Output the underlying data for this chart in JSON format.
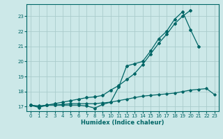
{
  "xlabel": "Humidex (Indice chaleur)",
  "bg_color": "#cce8e8",
  "grid_color": "#aacccc",
  "line_color": "#006666",
  "x_values": [
    0,
    1,
    2,
    3,
    4,
    5,
    6,
    7,
    8,
    9,
    10,
    11,
    12,
    13,
    14,
    15,
    16,
    17,
    18,
    19,
    20,
    21,
    22,
    23
  ],
  "line1_y": [
    17.1,
    17.0,
    17.1,
    17.1,
    17.15,
    17.2,
    17.2,
    17.2,
    17.2,
    17.25,
    17.3,
    17.4,
    17.5,
    17.6,
    17.7,
    17.75,
    17.8,
    17.85,
    17.9,
    18.0,
    18.1,
    18.15,
    18.2,
    17.8
  ],
  "line2_y": [
    17.1,
    16.95,
    17.1,
    17.1,
    17.1,
    17.1,
    17.1,
    17.05,
    16.9,
    17.15,
    17.3,
    18.3,
    19.7,
    19.85,
    20.0,
    20.7,
    21.5,
    22.0,
    22.8,
    23.3,
    22.1,
    21.0,
    null,
    null
  ],
  "line3_y": [
    17.1,
    17.05,
    17.1,
    17.2,
    17.3,
    17.4,
    17.5,
    17.6,
    17.65,
    17.75,
    18.1,
    18.4,
    18.8,
    19.2,
    19.8,
    20.5,
    21.2,
    21.8,
    22.5,
    23.0,
    23.4,
    null,
    null,
    null
  ],
  "ylim": [
    16.7,
    23.8
  ],
  "xlim": [
    -0.5,
    23.5
  ],
  "yticks": [
    17,
    18,
    19,
    20,
    21,
    22,
    23
  ],
  "xticks": [
    0,
    1,
    2,
    3,
    4,
    5,
    6,
    7,
    8,
    9,
    10,
    11,
    12,
    13,
    14,
    15,
    16,
    17,
    18,
    19,
    20,
    21,
    22,
    23
  ]
}
